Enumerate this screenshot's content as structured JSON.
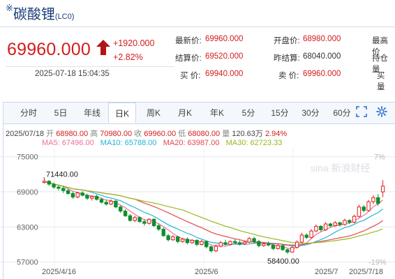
{
  "header": {
    "mark": "※",
    "name": "碳酸锂",
    "code": "(LC0)"
  },
  "quote": {
    "price": "69960.000",
    "change": "+1920.000",
    "change_pct": "+2.82%",
    "timestamp": "2025-07-18 15:04:35",
    "up_color": "#d41c1c"
  },
  "stats": [
    {
      "label": "最新价:",
      "value": "69960.000"
    },
    {
      "label": "开盘价:",
      "value": "68980.000"
    },
    {
      "label": "最高价",
      "value": ""
    },
    {
      "label": "结算价:",
      "value": "69520.000"
    },
    {
      "label": "昨结算:",
      "value": "68040.000"
    },
    {
      "label": "持仓量",
      "value": ""
    },
    {
      "label": "买  价:",
      "value": "69940.000"
    },
    {
      "label": "卖  价:",
      "value": "69960.000"
    },
    {
      "label": "买  量",
      "value": ""
    }
  ],
  "tabs": [
    "分时",
    "5日",
    "年线",
    "日K",
    "周K",
    "月K",
    "年K",
    "5分",
    "15分",
    "30分",
    "60分"
  ],
  "active_tab": "日K",
  "info_bar": {
    "date": "2025/07/18",
    "open_label": "开",
    "open": "68980.00",
    "high_label": "高",
    "high": "70980.00",
    "close_label": "收",
    "close": "69960.00",
    "low_label": "低",
    "low": "68080.00",
    "vol_label": "量",
    "vol": "120.63万",
    "pct": "2.94%"
  },
  "ma_legend": [
    {
      "label": "MA5: 67496.00",
      "color": "#ef6f9c"
    },
    {
      "label": "MA10: 65788.00",
      "color": "#21b3d6"
    },
    {
      "label": "MA20: 63987.00",
      "color": "#e1474f"
    },
    {
      "label": "MA30: 62723.33",
      "color": "#97b91f"
    }
  ],
  "watermark": "sina 新浪财经",
  "chart_data": {
    "type": "candlestick",
    "y_ticks": [
      "75000",
      "69000",
      "63000",
      "57000"
    ],
    "right_ticks": [
      "7%",
      "-19%"
    ],
    "x_ticks": [
      "2025/4/16",
      "2025/6",
      "2025/7",
      "2025/7/18"
    ],
    "annotations": {
      "max": "71440.00",
      "min": "58400.00"
    },
    "ylim": [
      56000,
      76500
    ],
    "up_color": "#e21b1b",
    "down_color": "#0d8f2c",
    "candles": [
      [
        70600,
        71440,
        70400,
        70800
      ],
      [
        70800,
        71000,
        70000,
        70300
      ],
      [
        70300,
        70600,
        69500,
        69800
      ],
      [
        69800,
        70100,
        69200,
        69600
      ],
      [
        69600,
        70000,
        68800,
        69200
      ],
      [
        69200,
        69500,
        68500,
        68700
      ],
      [
        68700,
        69000,
        67800,
        68100
      ],
      [
        68100,
        69000,
        67900,
        68800
      ],
      [
        68800,
        69100,
        68200,
        68400
      ],
      [
        68400,
        68700,
        67600,
        67900
      ],
      [
        67900,
        68400,
        67500,
        68200
      ],
      [
        68200,
        68500,
        67500,
        67700
      ],
      [
        67700,
        68000,
        67000,
        67200
      ],
      [
        67200,
        67600,
        66600,
        66900
      ],
      [
        66900,
        67700,
        66700,
        67400
      ],
      [
        67400,
        67600,
        66200,
        66400
      ],
      [
        66400,
        66700,
        65400,
        65700
      ],
      [
        65700,
        66000,
        64700,
        64900
      ],
      [
        64900,
        65200,
        63900,
        64100
      ],
      [
        64100,
        64900,
        63800,
        64600
      ],
      [
        64600,
        64800,
        63700,
        63900
      ],
      [
        63900,
        64300,
        63200,
        63600
      ],
      [
        63600,
        64500,
        63400,
        64300
      ],
      [
        64300,
        64500,
        63000,
        63200
      ],
      [
        63200,
        63600,
        62300,
        62600
      ],
      [
        62600,
        62900,
        61300,
        61500
      ],
      [
        61500,
        61800,
        60500,
        60800
      ],
      [
        60800,
        61600,
        60600,
        61300
      ],
      [
        61300,
        61500,
        60200,
        60500
      ],
      [
        60500,
        61100,
        60300,
        60900
      ],
      [
        60900,
        61200,
        60000,
        60300
      ],
      [
        60300,
        60900,
        60100,
        60700
      ],
      [
        60700,
        60900,
        59700,
        60000
      ],
      [
        60000,
        60800,
        59800,
        60500
      ],
      [
        60500,
        60700,
        59300,
        59600
      ],
      [
        59600,
        59800,
        58600,
        58900
      ],
      [
        58900,
        60000,
        58700,
        59700
      ],
      [
        59700,
        60600,
        59500,
        60300
      ],
      [
        60300,
        60800,
        59800,
        60000
      ],
      [
        60000,
        60700,
        59900,
        60500
      ],
      [
        60500,
        60900,
        60100,
        60300
      ],
      [
        60300,
        60700,
        59800,
        60100
      ],
      [
        60100,
        60600,
        59900,
        60400
      ],
      [
        60400,
        61300,
        60200,
        61000
      ],
      [
        61000,
        61300,
        60200,
        60500
      ],
      [
        60500,
        60800,
        59500,
        59800
      ],
      [
        59800,
        60300,
        59600,
        60100
      ],
      [
        60100,
        60500,
        59700,
        59900
      ],
      [
        59900,
        60100,
        59000,
        59300
      ],
      [
        59300,
        60100,
        59100,
        59800
      ],
      [
        59800,
        60000,
        58900,
        59100
      ],
      [
        59100,
        59300,
        58400,
        58700
      ],
      [
        58700,
        59700,
        58600,
        59500
      ],
      [
        59500,
        60700,
        59300,
        60400
      ],
      [
        60400,
        62000,
        60200,
        61600
      ],
      [
        61600,
        61900,
        60900,
        61200
      ],
      [
        61200,
        62600,
        61000,
        62300
      ],
      [
        62300,
        63400,
        62100,
        63100
      ],
      [
        63100,
        63300,
        62200,
        62500
      ],
      [
        62500,
        63800,
        62300,
        63500
      ],
      [
        63500,
        63700,
        62900,
        63200
      ],
      [
        63200,
        64000,
        63000,
        63700
      ],
      [
        63700,
        63900,
        63100,
        63400
      ],
      [
        63400,
        64400,
        63200,
        64100
      ],
      [
        64100,
        64300,
        63500,
        63800
      ],
      [
        63800,
        65100,
        63600,
        64800
      ],
      [
        64800,
        66800,
        64600,
        66400
      ],
      [
        66400,
        66700,
        65500,
        65800
      ],
      [
        65800,
        67600,
        65600,
        67300
      ],
      [
        67300,
        68400,
        66900,
        68000
      ],
      [
        68000,
        68600,
        66600,
        67000
      ],
      [
        68980,
        70980,
        68080,
        69960
      ]
    ]
  }
}
